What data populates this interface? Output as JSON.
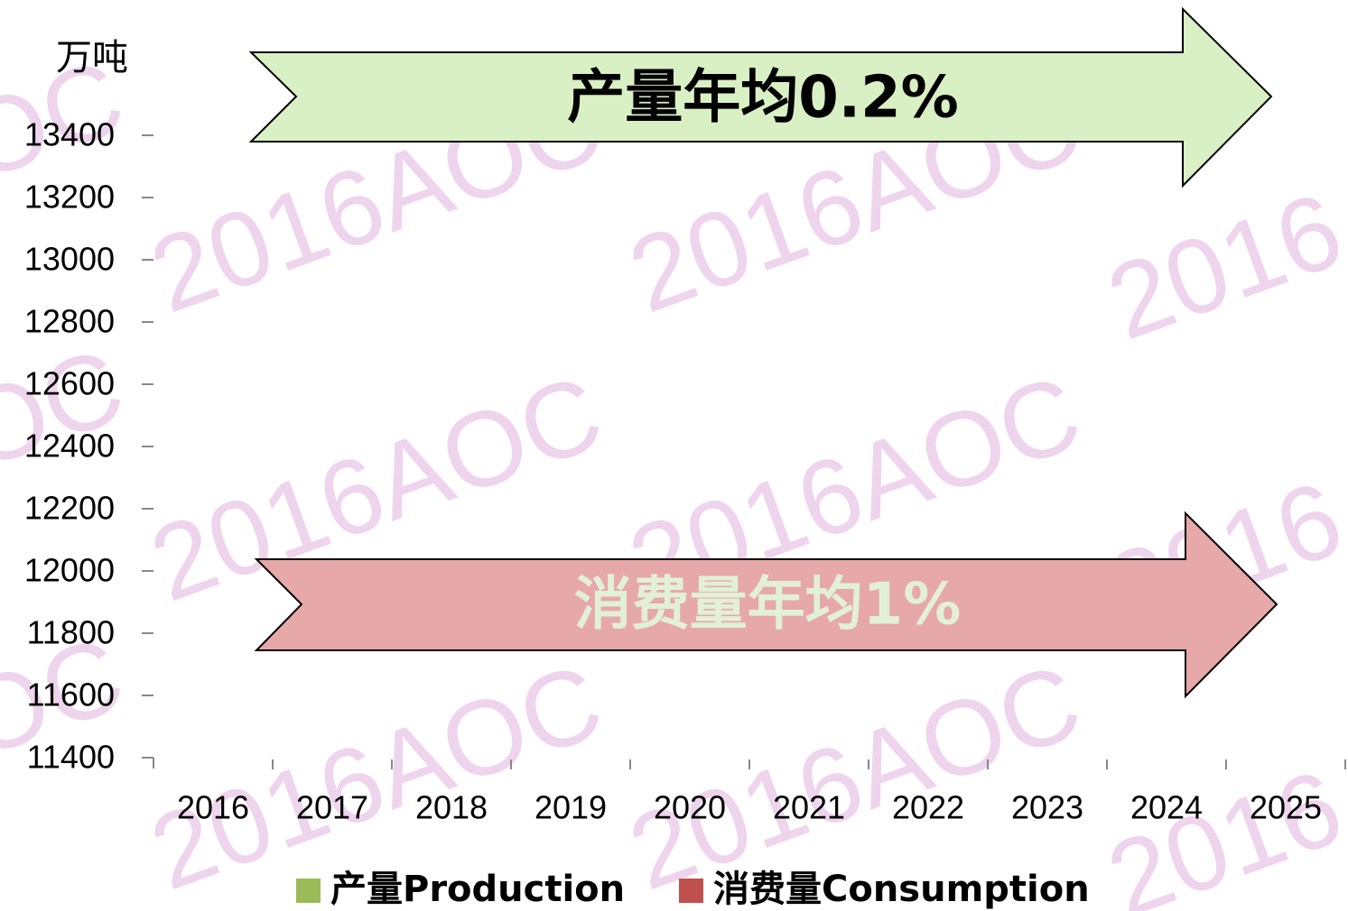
{
  "chart_data": {
    "type": "bar",
    "y_label": "万吨",
    "categories": [
      "2016",
      "2017",
      "2018",
      "2019",
      "2020",
      "2021",
      "2022",
      "2023",
      "2024",
      "2025"
    ],
    "series": [
      {
        "name": "产量Production",
        "color": "#9bbb59",
        "values": [
          null,
          null,
          null,
          null,
          null,
          null,
          null,
          null,
          null,
          null
        ]
      },
      {
        "name": "消费量Consumption",
        "color": "#c0504d",
        "values": [
          null,
          null,
          null,
          null,
          null,
          null,
          null,
          null,
          null,
          null
        ]
      }
    ],
    "ylim": [
      11400,
      13400
    ],
    "yticks": [
      11400,
      11600,
      11800,
      12000,
      12200,
      12400,
      12600,
      12800,
      13000,
      13200,
      13400
    ],
    "annotations": [
      {
        "text": "产量年均0.2%",
        "color": "#d9efc4"
      },
      {
        "text": "消费量年均1%",
        "color": "#e6a8a8"
      }
    ],
    "watermark": "2016AOC",
    "legend": "bottom"
  }
}
